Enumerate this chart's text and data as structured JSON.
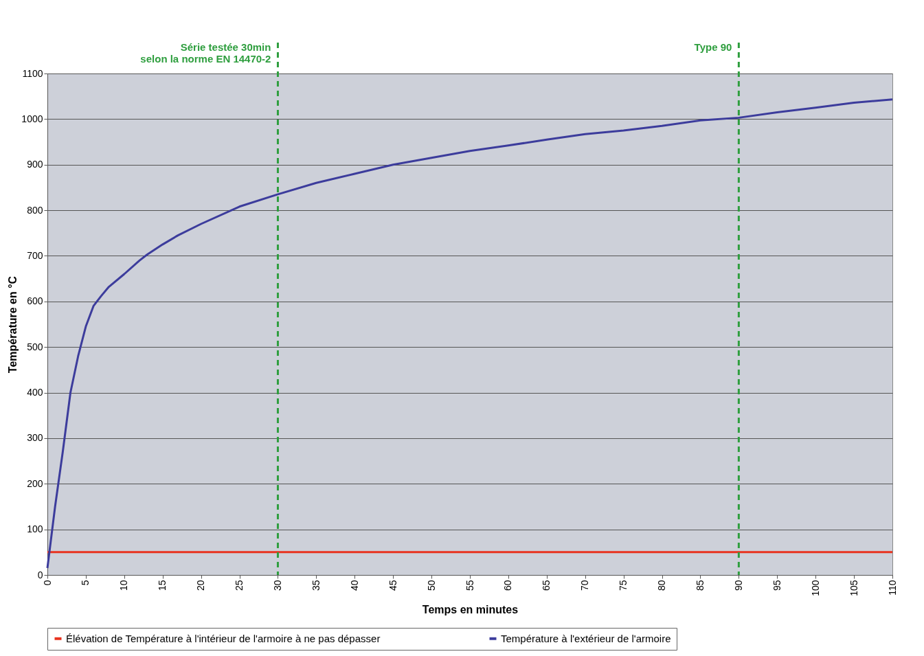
{
  "chart_data": {
    "type": "line",
    "xlabel": "Temps en minutes",
    "ylabel": "Température en °C",
    "x": [
      0,
      1,
      2,
      3,
      4,
      5,
      6,
      7,
      8,
      10,
      12,
      13,
      15,
      17,
      20,
      25,
      30,
      35,
      40,
      45,
      50,
      55,
      60,
      65,
      70,
      75,
      80,
      85,
      90,
      95,
      100,
      105,
      110
    ],
    "series": [
      {
        "name": "Élévation de Température à l'intérieur de l'armoire à ne pas dépasser",
        "color": "#e8321e",
        "x": [
          0,
          110
        ],
        "values": [
          50,
          50
        ]
      },
      {
        "name": "Température à l'extérieur de l'armoire",
        "color": "#3c3c9c",
        "values": [
          15,
          150,
          270,
          400,
          480,
          545,
          590,
          612,
          632,
          660,
          690,
          703,
          725,
          745,
          770,
          808,
          835,
          860,
          880,
          900,
          915,
          930,
          942,
          955,
          967,
          975,
          985,
          997,
          1003,
          1015,
          1025,
          1036,
          1043
        ]
      }
    ],
    "xlim": [
      0,
      110
    ],
    "xticks": [
      0,
      5,
      10,
      15,
      20,
      25,
      30,
      35,
      40,
      45,
      50,
      55,
      60,
      65,
      70,
      75,
      80,
      85,
      90,
      95,
      100,
      105,
      110
    ],
    "ylim": [
      0,
      1100
    ],
    "yticks": [
      0,
      100,
      200,
      300,
      400,
      500,
      600,
      700,
      800,
      900,
      1000,
      1100
    ],
    "grid": "y",
    "legend": "bottom",
    "line_style": "solid",
    "marker": "none",
    "ref_lines": [
      {
        "axis": "x",
        "value": 30,
        "label": "Série testée 30min\nselon la norme EN 14470-2",
        "color": "#2e9e3e",
        "line_style": "dashed"
      },
      {
        "axis": "x",
        "value": 90,
        "label": "Type 90",
        "color": "#2e9e3e",
        "line_style": "dashed"
      }
    ]
  }
}
